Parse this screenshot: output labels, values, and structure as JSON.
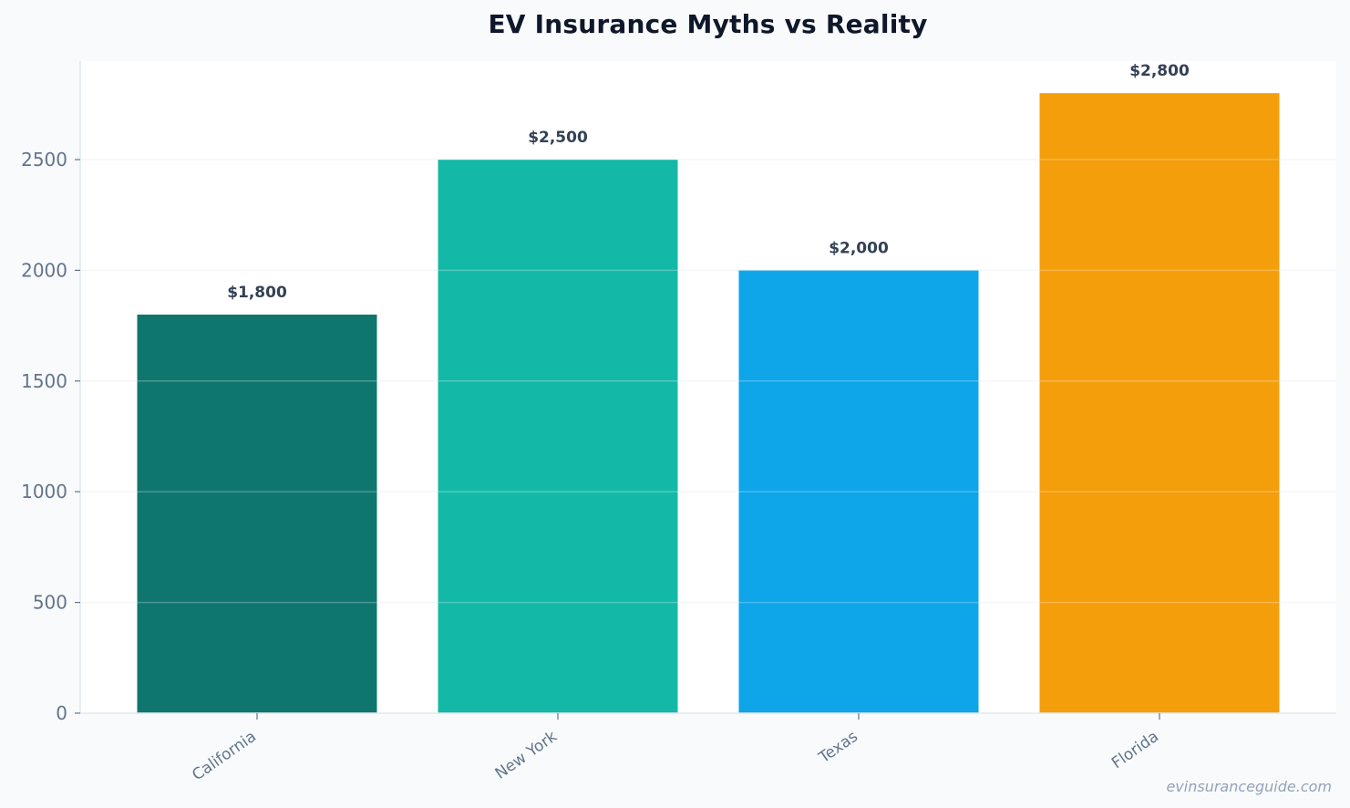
{
  "chart_data": {
    "type": "bar",
    "title": "EV Insurance Myths vs Reality",
    "xlabel": "",
    "ylabel": "",
    "categories": [
      "California",
      "New York",
      "Texas",
      "Florida"
    ],
    "values": [
      1800,
      2500,
      2000,
      2800
    ],
    "value_labels": [
      "$1,800",
      "$2,500",
      "$2,000",
      "$2,800"
    ],
    "colors": [
      "#0f766e",
      "#14b8a6",
      "#0ea5e9",
      "#f59e0b"
    ],
    "ylim": [
      0,
      2940
    ],
    "yticks": [
      0,
      500,
      1000,
      1500,
      2000,
      2500
    ],
    "grid": true,
    "legend": "none"
  },
  "watermark": "evinsuranceguide.com"
}
